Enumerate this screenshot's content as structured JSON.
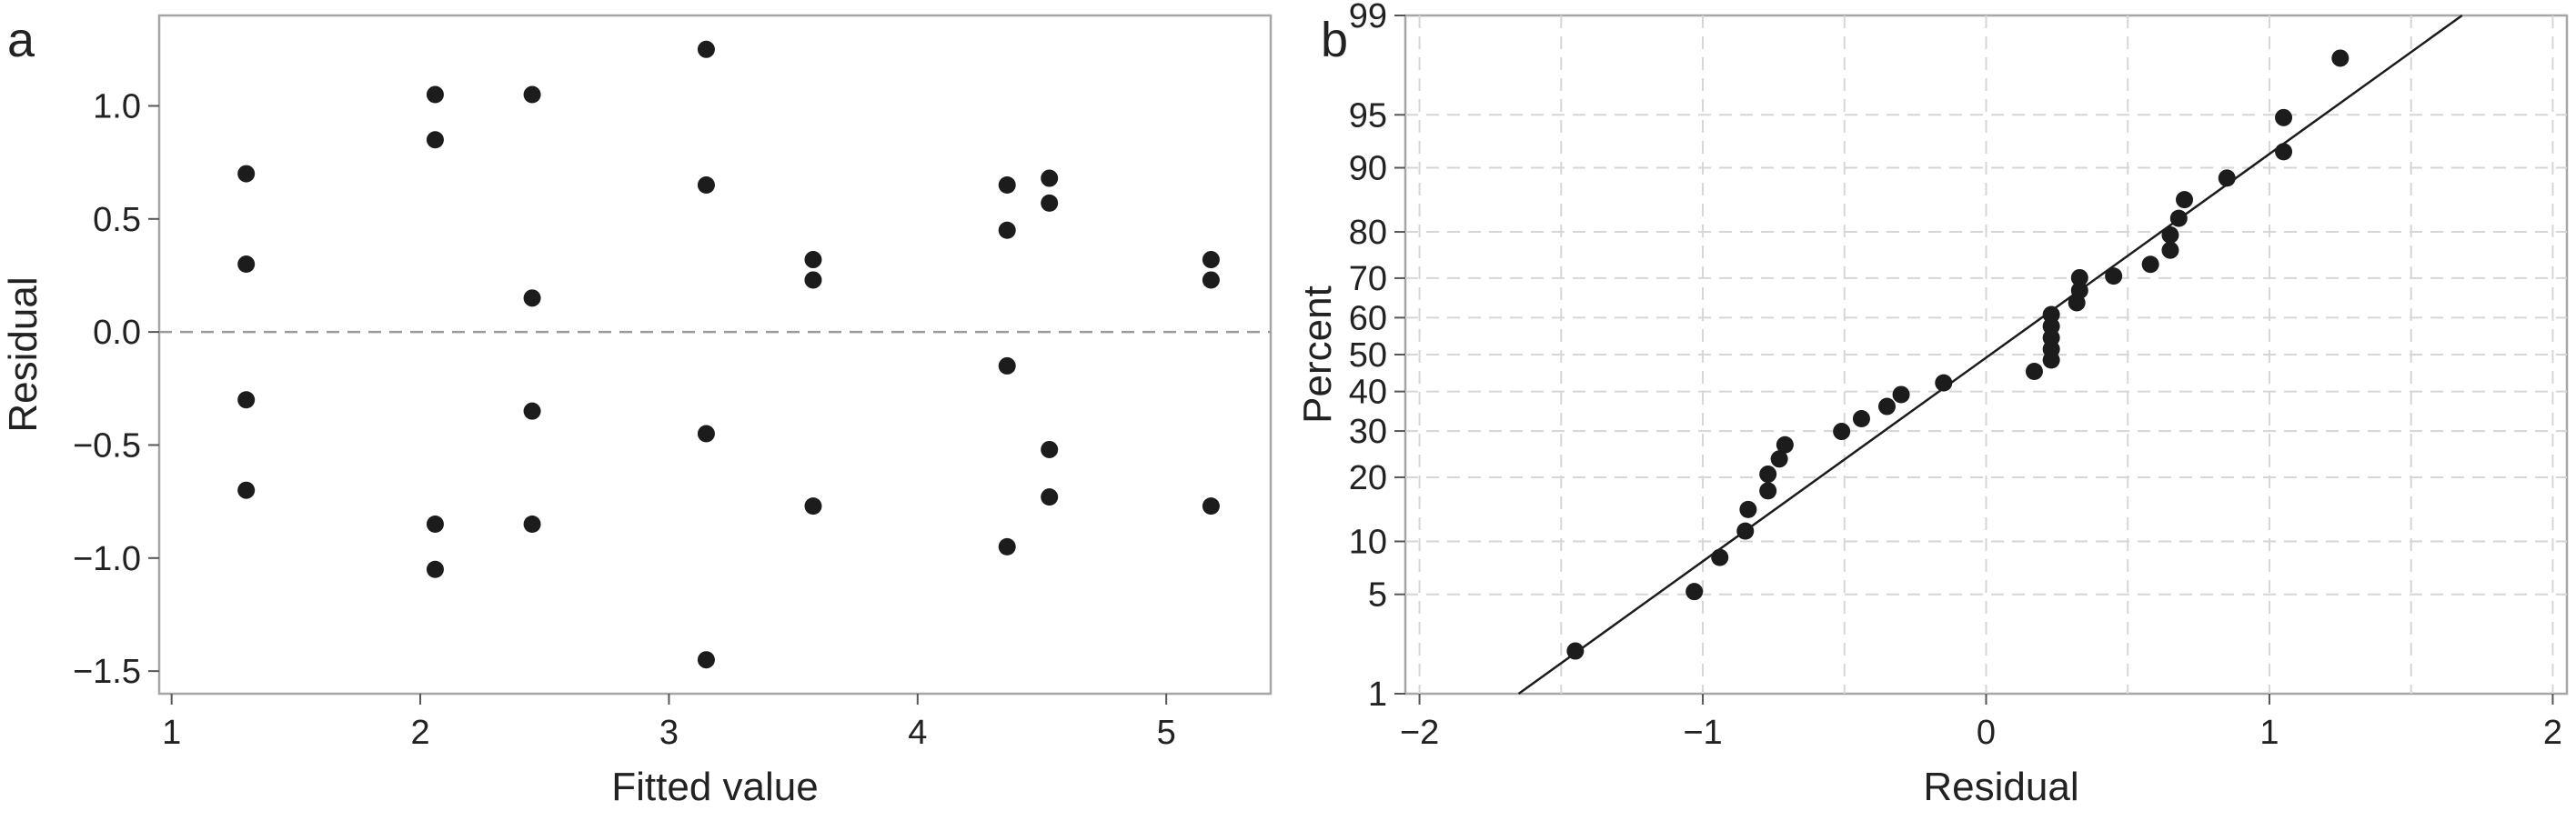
{
  "figure": {
    "panel_a_letter": "a",
    "panel_b_letter": "b"
  },
  "chart_data": [
    {
      "panel": "a",
      "type": "scatter",
      "title": "",
      "xlabel": "Fitted value",
      "ylabel": "Residual",
      "xlim": [
        0.95,
        5.42
      ],
      "ylim": [
        -1.6,
        1.4
      ],
      "xticks": [
        1,
        2,
        3,
        4,
        5
      ],
      "xtick_labels": [
        "1",
        "2",
        "3",
        "4",
        "5"
      ],
      "yticks": [
        1.0,
        0.5,
        0.0,
        -0.5,
        -1.0,
        -1.5
      ],
      "ytick_labels": [
        "1.0",
        "0.5",
        "0.0",
        "−0.5",
        "−1.0",
        "−1.5"
      ],
      "reference_line": {
        "y": 0.0,
        "style": "dashed"
      },
      "grid": false,
      "series": [
        {
          "x": [
            1.3,
            1.3,
            1.3,
            1.3,
            2.06,
            2.06,
            2.06,
            2.06,
            2.45,
            2.45,
            2.45,
            2.45,
            3.15,
            3.15,
            3.15,
            3.15,
            3.58,
            3.58,
            3.58,
            4.36,
            4.36,
            4.36,
            4.36,
            4.53,
            4.53,
            4.53,
            4.53,
            5.18,
            5.18,
            5.18
          ],
          "y": [
            0.7,
            0.3,
            -0.3,
            -0.7,
            1.05,
            0.85,
            -0.85,
            -1.05,
            1.05,
            0.15,
            -0.35,
            -0.85,
            1.25,
            0.65,
            -0.45,
            -1.45,
            0.32,
            0.23,
            -0.77,
            0.65,
            0.45,
            -0.15,
            -0.95,
            0.68,
            0.57,
            -0.52,
            -0.73,
            0.32,
            0.23,
            -0.77
          ]
        }
      ]
    },
    {
      "panel": "b",
      "type": "scatter",
      "title": "",
      "xlabel": "Residual",
      "ylabel": "Percent",
      "scale": "normal-probability",
      "xlim": [
        -2.05,
        2.05
      ],
      "ylim": [
        1,
        99
      ],
      "xticks": [
        -2,
        -1,
        0,
        1,
        2
      ],
      "xtick_labels": [
        "−2",
        "−1",
        "0",
        "1",
        "2"
      ],
      "yticks": [
        1,
        5,
        10,
        20,
        30,
        40,
        50,
        60,
        70,
        80,
        90,
        95,
        99
      ],
      "ytick_labels": [
        "1",
        "5",
        "10",
        "20",
        "30",
        "40",
        "50",
        "60",
        "70",
        "80",
        "90",
        "95",
        "99"
      ],
      "grid": true,
      "fit_line": {
        "x": [
          -1.65,
          1.68
        ],
        "percent": [
          1,
          99
        ]
      },
      "series": [
        {
          "x": [
            -1.45,
            -1.03,
            -0.94,
            -0.85,
            -0.84,
            -0.77,
            -0.77,
            -0.73,
            -0.71,
            -0.51,
            -0.44,
            -0.35,
            -0.3,
            -0.15,
            0.17,
            0.23,
            0.23,
            0.23,
            0.23,
            0.23,
            0.32,
            0.33,
            0.33,
            0.45,
            0.58,
            0.65,
            0.65,
            0.68,
            0.7,
            0.85,
            1.05,
            1.05,
            1.25
          ],
          "percent": [
            2.1,
            5.2,
            8.2,
            11.3,
            14.4,
            17.5,
            20.6,
            23.7,
            26.8,
            29.9,
            33.0,
            36.1,
            39.2,
            42.3,
            45.4,
            48.5,
            51.5,
            54.6,
            57.7,
            60.8,
            63.9,
            67.0,
            70.1,
            70.5,
            73.2,
            76.3,
            79.4,
            82.5,
            85.6,
            88.7,
            91.8,
            94.8,
            97.9
          ]
        }
      ]
    }
  ]
}
